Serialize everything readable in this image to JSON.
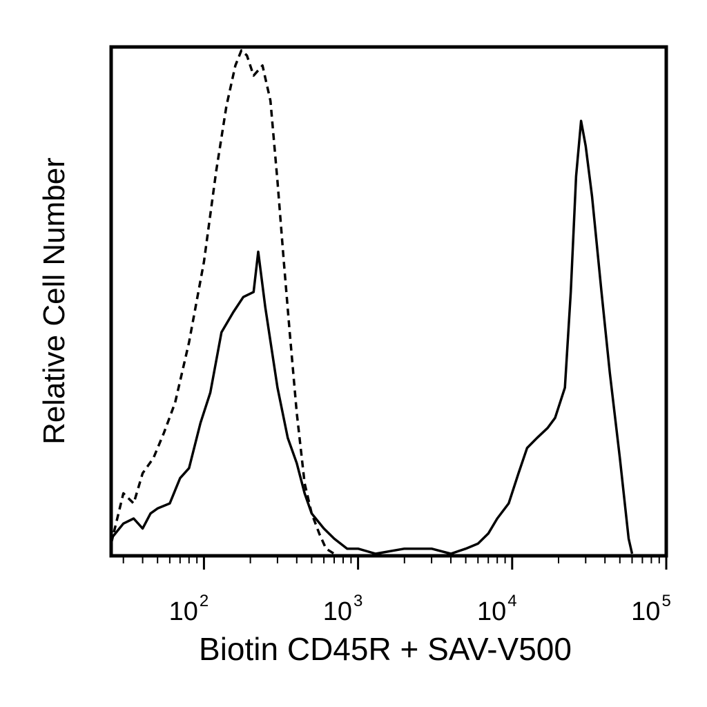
{
  "chart_data": {
    "type": "line",
    "title": "",
    "xlabel": "Biotin CD45R + SAV-V500",
    "ylabel": "Relative Cell Number",
    "x_scale": "log",
    "xlim": [
      25,
      100000
    ],
    "ylim": [
      0,
      1.0
    ],
    "x_ticks": [
      {
        "value": 100,
        "base": "10",
        "exp": "2"
      },
      {
        "value": 1000,
        "base": "10",
        "exp": "3"
      },
      {
        "value": 10000,
        "base": "10",
        "exp": "4"
      },
      {
        "value": 100000,
        "base": "10",
        "exp": "5"
      }
    ],
    "grid": false,
    "legend": "none",
    "series": [
      {
        "style": "dashed",
        "color": "#000000",
        "points": [
          [
            25,
            0.02
          ],
          [
            30,
            0.12
          ],
          [
            35,
            0.1
          ],
          [
            40,
            0.16
          ],
          [
            47,
            0.19
          ],
          [
            55,
            0.24
          ],
          [
            65,
            0.3
          ],
          [
            80,
            0.42
          ],
          [
            100,
            0.58
          ],
          [
            120,
            0.76
          ],
          [
            140,
            0.89
          ],
          [
            160,
            0.97
          ],
          [
            175,
            1.0
          ],
          [
            190,
            0.99
          ],
          [
            210,
            0.95
          ],
          [
            240,
            0.97
          ],
          [
            270,
            0.9
          ],
          [
            300,
            0.74
          ],
          [
            330,
            0.58
          ],
          [
            360,
            0.44
          ],
          [
            400,
            0.28
          ],
          [
            450,
            0.14
          ],
          [
            500,
            0.08
          ],
          [
            560,
            0.04
          ],
          [
            620,
            0.01
          ],
          [
            700,
            0.0
          ]
        ]
      },
      {
        "style": "solid",
        "color": "#000000",
        "points": [
          [
            25,
            0.03
          ],
          [
            30,
            0.06
          ],
          [
            35,
            0.07
          ],
          [
            40,
            0.05
          ],
          [
            45,
            0.08
          ],
          [
            50,
            0.09
          ],
          [
            60,
            0.1
          ],
          [
            70,
            0.15
          ],
          [
            80,
            0.17
          ],
          [
            95,
            0.26
          ],
          [
            110,
            0.32
          ],
          [
            130,
            0.44
          ],
          [
            155,
            0.48
          ],
          [
            180,
            0.51
          ],
          [
            210,
            0.52
          ],
          [
            225,
            0.6
          ],
          [
            250,
            0.49
          ],
          [
            300,
            0.33
          ],
          [
            350,
            0.23
          ],
          [
            400,
            0.18
          ],
          [
            450,
            0.12
          ],
          [
            500,
            0.08
          ],
          [
            600,
            0.05
          ],
          [
            700,
            0.03
          ],
          [
            850,
            0.01
          ],
          [
            1000,
            0.01
          ],
          [
            1300,
            0.0
          ],
          [
            2000,
            0.01
          ],
          [
            3000,
            0.01
          ],
          [
            4000,
            0.0
          ],
          [
            5000,
            0.01
          ],
          [
            6000,
            0.02
          ],
          [
            7000,
            0.04
          ],
          [
            8000,
            0.07
          ],
          [
            9500,
            0.1
          ],
          [
            11000,
            0.16
          ],
          [
            12500,
            0.21
          ],
          [
            14500,
            0.23
          ],
          [
            17000,
            0.25
          ],
          [
            19000,
            0.27
          ],
          [
            22000,
            0.33
          ],
          [
            24000,
            0.52
          ],
          [
            26000,
            0.75
          ],
          [
            28000,
            0.86
          ],
          [
            30000,
            0.81
          ],
          [
            33000,
            0.71
          ],
          [
            38000,
            0.52
          ],
          [
            43000,
            0.36
          ],
          [
            50000,
            0.19
          ],
          [
            57000,
            0.03
          ],
          [
            60000,
            0.0
          ]
        ]
      }
    ]
  }
}
